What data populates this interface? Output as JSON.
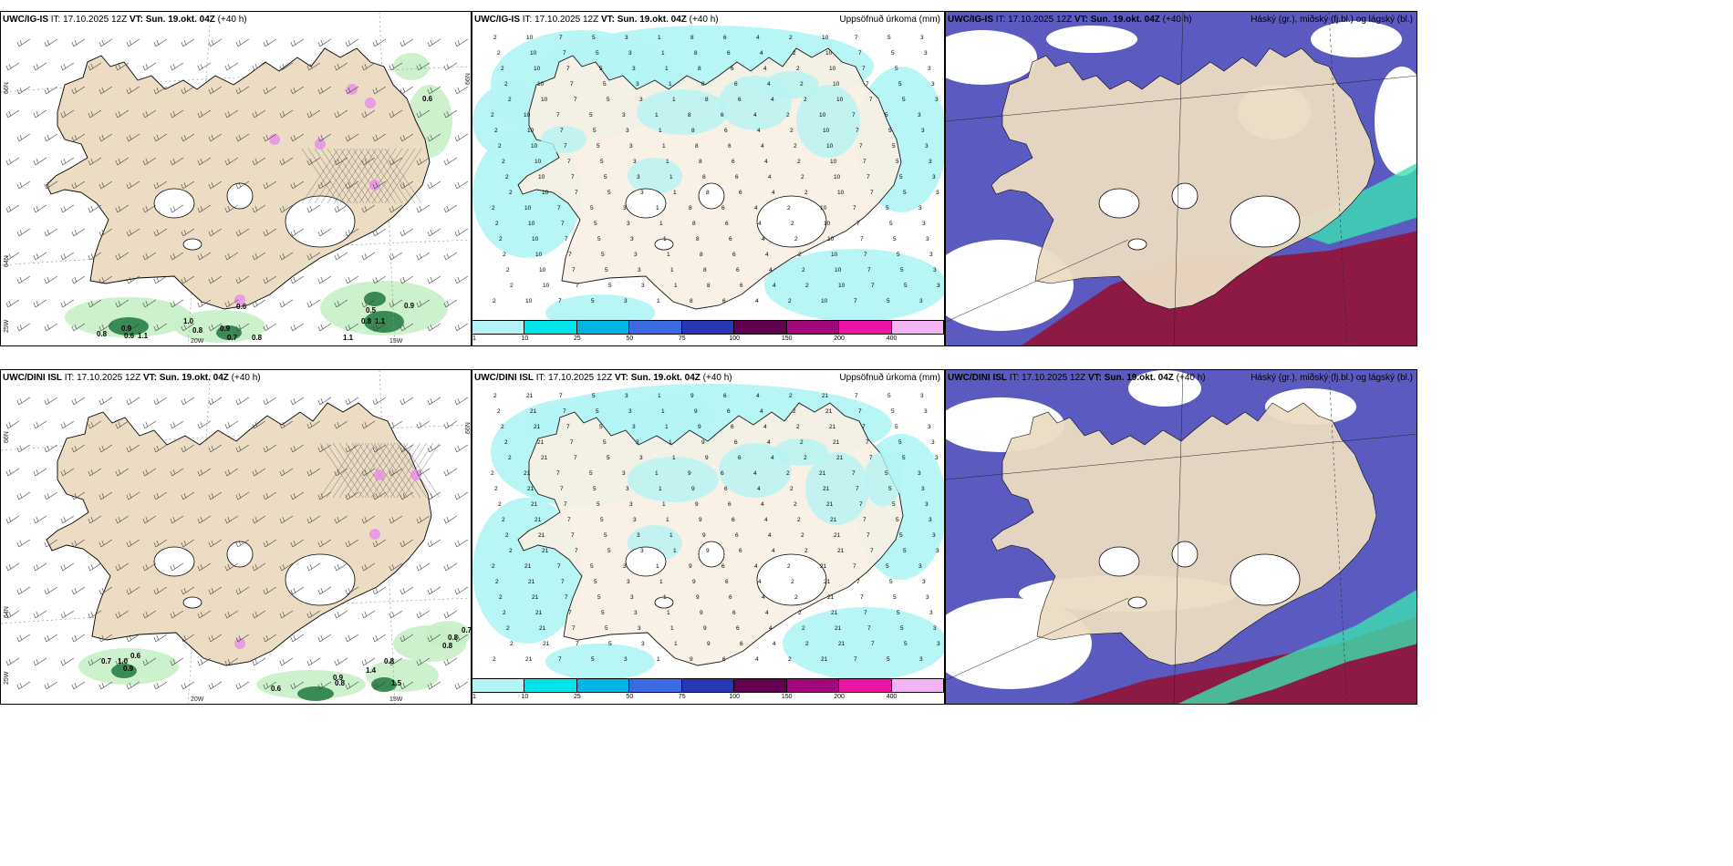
{
  "rows": [
    {
      "model": "UWC/IG-IS",
      "it_label": "IT:",
      "it_value": "17.10.2025 12Z",
      "vt_label": "VT:",
      "vt_value": "Sun. 19.okt. 04Z",
      "lead": "(+40 h)",
      "precip_title": "Uppsöfnuð úrkoma (mm)",
      "cloud_title": "Háský (gr.), miðský (fj.bl.) og lágský (bl.)",
      "lat_labels": [
        "66N",
        "64N",
        "25W"
      ],
      "lon_labels": [
        "20W",
        "15W"
      ],
      "right_lat_labels": [
        "66N",
        "64N"
      ],
      "green_values": [
        "0.6",
        "0.8",
        "0.9",
        "0.6",
        "1.1",
        "1.0",
        "0.8",
        "0.9",
        "0.7",
        "0.8",
        "0.5",
        "0.8",
        "0.9",
        "1.1",
        "0.6",
        "1.1"
      ],
      "precip_numbers": [
        "1",
        "2",
        "3",
        "4",
        "5",
        "6",
        "7",
        "8",
        "10"
      ]
    },
    {
      "model": "UWC/DINI ISL",
      "it_label": "IT:",
      "it_value": "17.10.2025 12Z",
      "vt_label": "VT:",
      "vt_value": "Sun. 19.okt. 04Z",
      "lead": "(+40 h)",
      "precip_title": "Uppsöfnuð úrkoma (mm)",
      "cloud_title": "Háský (gr.), miðský (fj.bl.) og lágský (bl.)",
      "lat_labels": [
        "66N",
        "64N",
        "25W"
      ],
      "lon_labels": [
        "20W",
        "15W"
      ],
      "right_lat_labels": [
        "66N",
        "64N"
      ],
      "green_values": [
        "0.7",
        "1.0",
        "0.6",
        "0.9",
        "0.6",
        "0.9",
        "0.8",
        "1.4",
        "0.8",
        "1.5",
        "0.8",
        "0.8",
        "0.7"
      ],
      "precip_numbers": [
        "1",
        "2",
        "3",
        "4",
        "5",
        "6",
        "7",
        "9",
        "21"
      ]
    }
  ],
  "colorbar": {
    "ticks": [
      "1",
      "10",
      "25",
      "50",
      "75",
      "100",
      "150",
      "200",
      "400"
    ],
    "colors": [
      "#b4f4f4",
      "#00e4ec",
      "#00b4e4",
      "#3c6ce4",
      "#2838b4",
      "#640050",
      "#a0087c",
      "#ec14a4",
      "#f4b4f4"
    ]
  },
  "colors": {
    "land": "#ecdcc4",
    "land_precip": "#faf0e4",
    "precip_light": "#b4f4f4",
    "cloud_high": "#5a5ac0",
    "cloud_low": "#8c1a44",
    "cloud_mid": "#3ce0b0",
    "green_light": "#c8f0c8",
    "green_dark": "#1e7840",
    "snow_pink": "#e890e8"
  }
}
